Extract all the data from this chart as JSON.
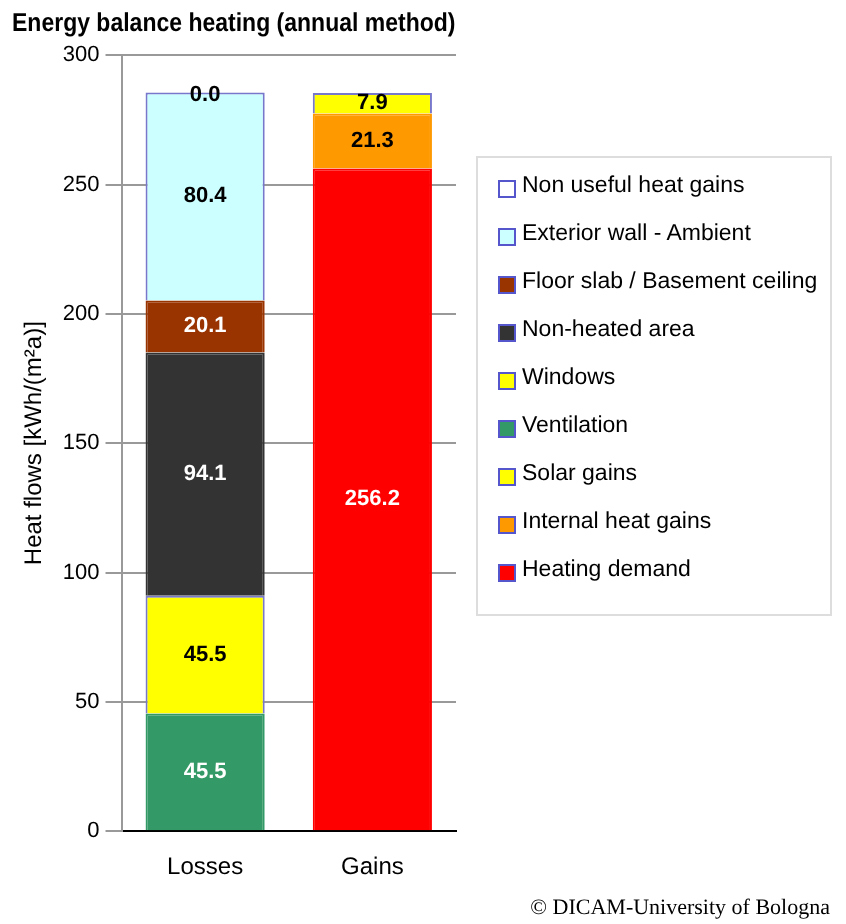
{
  "chart_data": {
    "type": "bar",
    "title": "Energy balance heating (annual method)",
    "ylabel": "Heat flows [kWh/(m²a)]",
    "categories": [
      "Losses",
      "Gains"
    ],
    "stacked": true,
    "data_labels": true,
    "grid": "y",
    "legend": "right",
    "ylim": [
      0,
      300
    ],
    "yticks": [
      0,
      50,
      100,
      150,
      200,
      250,
      300
    ],
    "annotations": [
      "© DICAM-University of Bologna"
    ],
    "series": [
      {
        "name": "Ventilation",
        "color": "#339966",
        "values": [
          45.5,
          null
        ]
      },
      {
        "name": "Windows",
        "color": "#ffff00",
        "values": [
          45.5,
          null
        ]
      },
      {
        "name": "Non-heated area",
        "color": "#333333",
        "values": [
          94.1,
          null
        ]
      },
      {
        "name": "Floor slab / Basement ceiling",
        "color": "#993300",
        "values": [
          20.1,
          null
        ]
      },
      {
        "name": "Exterior wall - Ambient",
        "color": "#ccffff",
        "values": [
          80.4,
          null
        ]
      },
      {
        "name": "Non useful heat gains",
        "color": "#ffffff",
        "values": [
          0.0,
          null
        ],
        "value_labels": [
          "0.0",
          null
        ]
      },
      {
        "name": "Heating demand",
        "color": "#ff0000",
        "values": [
          null,
          256.2
        ]
      },
      {
        "name": "Internal heat gains",
        "color": "#ff9900",
        "values": [
          null,
          21.3
        ]
      },
      {
        "name": "Solar gains",
        "color": "#ffff00",
        "values": [
          null,
          7.9
        ]
      }
    ]
  }
}
